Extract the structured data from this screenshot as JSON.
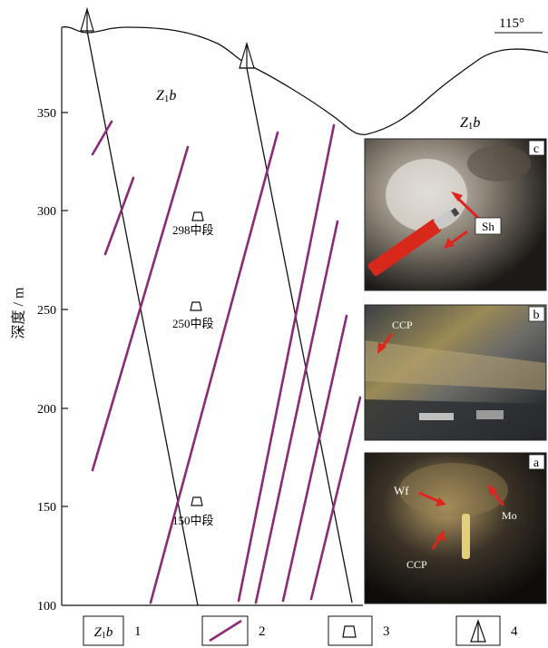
{
  "axis": {
    "ylabel": "深度 / m",
    "yticks": [
      "350",
      "300",
      "250",
      "200",
      "150",
      "100"
    ],
    "ytick_values": [
      350,
      300,
      250,
      200,
      150,
      100
    ]
  },
  "orientation": "115°",
  "formation_labels": [
    "Z1b",
    "Z1b"
  ],
  "levels": [
    {
      "elevation": 298,
      "label": "298中段"
    },
    {
      "elevation": 250,
      "label": "250中段"
    },
    {
      "elevation": 150,
      "label": "150中段"
    }
  ],
  "photos": [
    {
      "panel": "c",
      "mineral_labels": [
        "Sh"
      ]
    },
    {
      "panel": "b",
      "mineral_labels": [
        "CCP"
      ]
    },
    {
      "panel": "a",
      "mineral_labels": [
        "Wf",
        "Mo",
        "CCP"
      ]
    }
  ],
  "legend": [
    {
      "symbol": "Z1b",
      "number": "1",
      "meaning": "formation"
    },
    {
      "symbol": "vein-line",
      "number": "2",
      "meaning": "ore vein"
    },
    {
      "symbol": "level-symbol",
      "number": "3",
      "meaning": "mining level"
    },
    {
      "symbol": "drill-symbol",
      "number": "4",
      "meaning": "drill hole collar"
    }
  ],
  "colors": {
    "vein": "#8b2a78",
    "line": "#111111",
    "arrow": "#e0241e"
  }
}
